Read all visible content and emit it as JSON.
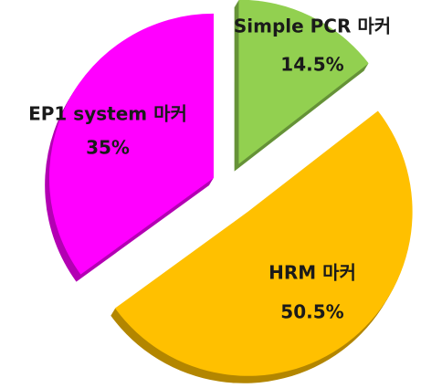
{
  "chart_data": {
    "type": "pie",
    "categories": [
      "Simple PCR 마커",
      "HRM 마커",
      "EP1 system 마커"
    ],
    "values": [
      14.5,
      50.5,
      35
    ],
    "value_labels": [
      "14.5%",
      "50.5%",
      "35%"
    ],
    "colors": [
      "#92d050",
      "#ffc000",
      "#ff00ff"
    ]
  }
}
